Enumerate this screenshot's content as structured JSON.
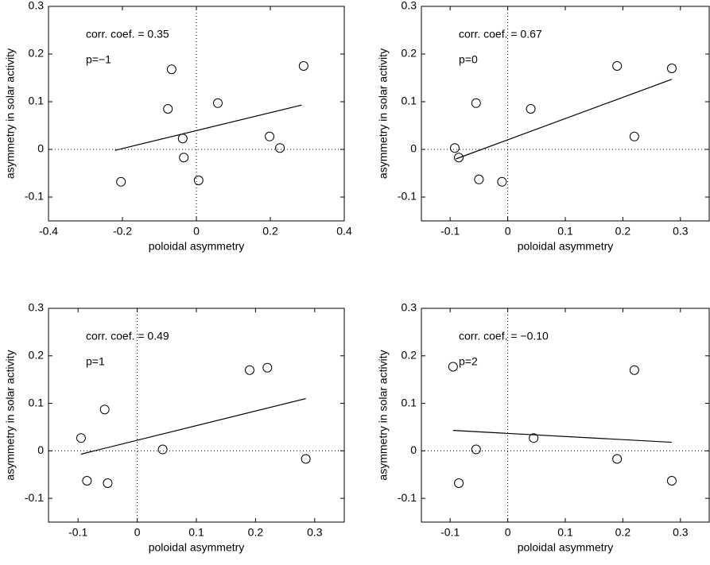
{
  "chart_data": [
    {
      "type": "scatter",
      "xlabel": "poloidal asymmetry",
      "ylabel": "asymmetry in solar activity",
      "annotations": [
        "corr. coef. = 0.35",
        "p=−1"
      ],
      "xlim": [
        -0.4,
        0.4
      ],
      "ylim": [
        -0.15,
        0.3
      ],
      "xticks": [
        -0.4,
        -0.2,
        0,
        0.2,
        0.4
      ],
      "yticks": [
        -0.1,
        0,
        0.1,
        0.2,
        0.3
      ],
      "x": [
        -0.067,
        -0.077,
        0.058,
        -0.037,
        -0.034,
        0.006,
        -0.204,
        0.198,
        0.226,
        0.29
      ],
      "y": [
        0.168,
        0.085,
        0.097,
        0.023,
        -0.017,
        -0.065,
        -0.068,
        0.027,
        0.003,
        0.175
      ],
      "fit": {
        "x": [
          -0.22,
          0.285
        ],
        "y": [
          -0.002,
          0.093
        ]
      },
      "zero_lines": true
    },
    {
      "type": "scatter",
      "xlabel": "poloidal asymmetry",
      "ylabel": "asymmetry in solar activity",
      "annotations": [
        "corr. coef. = 0.67",
        "p=0"
      ],
      "xlim": [
        -0.15,
        0.35
      ],
      "ylim": [
        -0.15,
        0.3
      ],
      "xticks": [
        -0.1,
        0,
        0.1,
        0.2,
        0.3
      ],
      "yticks": [
        -0.1,
        0,
        0.1,
        0.2,
        0.3
      ],
      "x": [
        -0.092,
        -0.085,
        -0.055,
        -0.05,
        -0.01,
        0.04,
        0.19,
        0.22,
        0.285
      ],
      "y": [
        0.003,
        -0.017,
        0.097,
        -0.063,
        -0.068,
        0.085,
        0.175,
        0.027,
        0.17
      ],
      "fit": {
        "x": [
          -0.09,
          0.285
        ],
        "y": [
          -0.02,
          0.147
        ]
      },
      "zero_lines": true
    },
    {
      "type": "scatter",
      "xlabel": "poloidal asymmetry",
      "ylabel": "asymmetry in solar activity",
      "annotations": [
        "corr. coef. = 0.49",
        "p=1"
      ],
      "xlim": [
        -0.15,
        0.35
      ],
      "ylim": [
        -0.15,
        0.3
      ],
      "xticks": [
        -0.1,
        0,
        0.1,
        0.2,
        0.3
      ],
      "yticks": [
        -0.1,
        0,
        0.1,
        0.2,
        0.3
      ],
      "x": [
        -0.095,
        -0.085,
        -0.055,
        -0.05,
        0.043,
        0.19,
        0.22,
        0.285
      ],
      "y": [
        0.027,
        -0.063,
        0.087,
        -0.068,
        0.003,
        0.17,
        0.175,
        -0.017
      ],
      "fit": {
        "x": [
          -0.095,
          0.285
        ],
        "y": [
          -0.007,
          0.11
        ]
      },
      "zero_lines": true
    },
    {
      "type": "scatter",
      "xlabel": "poloidal asymmetry",
      "ylabel": "asymmetry in solar activity",
      "annotations": [
        "corr. coef. = −0.10",
        "p=2"
      ],
      "xlim": [
        -0.15,
        0.35
      ],
      "ylim": [
        -0.15,
        0.3
      ],
      "xticks": [
        -0.1,
        0,
        0.1,
        0.2,
        0.3
      ],
      "yticks": [
        -0.1,
        0,
        0.1,
        0.2,
        0.3
      ],
      "x": [
        -0.095,
        -0.085,
        -0.055,
        0.045,
        0.19,
        0.22,
        0.285
      ],
      "y": [
        0.177,
        -0.068,
        0.003,
        0.027,
        -0.017,
        0.17,
        -0.063
      ],
      "fit": {
        "x": [
          -0.095,
          0.285
        ],
        "y": [
          0.043,
          0.018
        ]
      },
      "zero_lines": true
    }
  ]
}
